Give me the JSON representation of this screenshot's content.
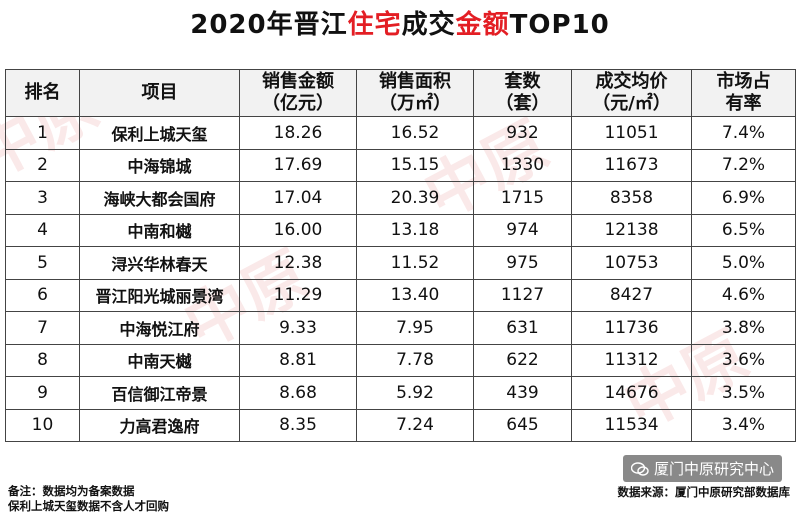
{
  "title": {
    "prefix": "2020年晋江",
    "highlight1": "住宅",
    "middle": "成交",
    "highlight2": "金额",
    "suffix": "TOP10"
  },
  "table": {
    "headers": [
      "排名",
      "项目",
      "销售金额\n（亿元）",
      "销售面积\n（万㎡）",
      "套数\n（套）",
      "成交均价\n（元/㎡）",
      "市场占\n有率"
    ],
    "rows": [
      [
        "1",
        "保利上城天玺",
        "18.26",
        "16.52",
        "932",
        "11051",
        "7.4%"
      ],
      [
        "2",
        "中海锦城",
        "17.69",
        "15.15",
        "1330",
        "11673",
        "7.2%"
      ],
      [
        "3",
        "海峡大都会国府",
        "17.04",
        "20.39",
        "1715",
        "8358",
        "6.9%"
      ],
      [
        "4",
        "中南和樾",
        "16.00",
        "13.18",
        "974",
        "12138",
        "6.5%"
      ],
      [
        "5",
        "浔兴华林春天",
        "12.38",
        "11.52",
        "975",
        "10753",
        "5.0%"
      ],
      [
        "6",
        "晋江阳光城丽景湾",
        "11.29",
        "13.40",
        "1127",
        "8427",
        "4.6%"
      ],
      [
        "7",
        "中海悦江府",
        "9.33",
        "7.95",
        "631",
        "11736",
        "3.8%"
      ],
      [
        "8",
        "中南天樾",
        "8.81",
        "7.78",
        "622",
        "11312",
        "3.6%"
      ],
      [
        "9",
        "百信御江帝景",
        "8.68",
        "5.92",
        "439",
        "14676",
        "3.5%"
      ],
      [
        "10",
        "力高君逸府",
        "8.35",
        "7.24",
        "645",
        "11534",
        "3.4%"
      ]
    ]
  },
  "footer": {
    "note1": "备注：数据均为备案数据",
    "note2": "保利上城天玺数据不含人才回购",
    "source": "数据来源：厦门中原研究部数据库"
  },
  "wechat": {
    "label": "厦门中原研究中心"
  },
  "watermark": {
    "text": "中原"
  }
}
